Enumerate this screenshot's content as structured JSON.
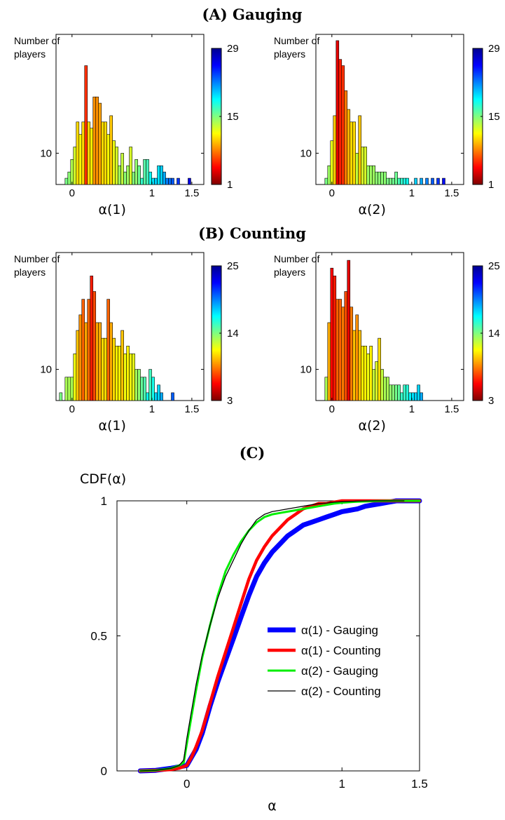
{
  "sections": {
    "a": "(A) Gauging",
    "b": "(B) Counting",
    "c": "(C)"
  },
  "colorbar_stops": [
    "#7f0000",
    "#ff0000",
    "#ff8000",
    "#ffff00",
    "#80ff80",
    "#00ffff",
    "#0080ff",
    "#0000ff",
    "#00008f"
  ],
  "chart_data": [
    {
      "type": "bar",
      "panel": "A-left",
      "section": "Gauging",
      "ylabel": "Number of\nplayers",
      "xlabel": "α(1)",
      "xticks": [
        0,
        1,
        1.5
      ],
      "xtick_labels": [
        "0",
        "1",
        "1.5"
      ],
      "yticks": [
        10
      ],
      "ytick_labels": [
        "10"
      ],
      "xlim": [
        -0.2,
        1.65
      ],
      "ylim": [
        5,
        29
      ],
      "colorbar": {
        "ticks": [
          1,
          15,
          29
        ],
        "labels": [
          "1",
          "15",
          "29"
        ],
        "min": 1,
        "max": 29
      },
      "bins": [
        {
          "x": -0.07,
          "y": 6
        },
        {
          "x": -0.035,
          "y": 7
        },
        {
          "x": 0.0,
          "y": 9
        },
        {
          "x": 0.035,
          "y": 11
        },
        {
          "x": 0.07,
          "y": 15
        },
        {
          "x": 0.105,
          "y": 13
        },
        {
          "x": 0.14,
          "y": 15
        },
        {
          "x": 0.175,
          "y": 24
        },
        {
          "x": 0.21,
          "y": 15
        },
        {
          "x": 0.245,
          "y": 14
        },
        {
          "x": 0.28,
          "y": 19
        },
        {
          "x": 0.315,
          "y": 19
        },
        {
          "x": 0.35,
          "y": 18
        },
        {
          "x": 0.385,
          "y": 15
        },
        {
          "x": 0.42,
          "y": 15
        },
        {
          "x": 0.455,
          "y": 13
        },
        {
          "x": 0.49,
          "y": 16
        },
        {
          "x": 0.525,
          "y": 12
        },
        {
          "x": 0.56,
          "y": 11
        },
        {
          "x": 0.595,
          "y": 8
        },
        {
          "x": 0.63,
          "y": 10
        },
        {
          "x": 0.665,
          "y": 7
        },
        {
          "x": 0.7,
          "y": 8
        },
        {
          "x": 0.735,
          "y": 11
        },
        {
          "x": 0.77,
          "y": 7
        },
        {
          "x": 0.805,
          "y": 9
        },
        {
          "x": 0.84,
          "y": 8
        },
        {
          "x": 0.875,
          "y": 6
        },
        {
          "x": 0.91,
          "y": 9
        },
        {
          "x": 0.945,
          "y": 9
        },
        {
          "x": 0.98,
          "y": 7
        },
        {
          "x": 1.015,
          "y": 6
        },
        {
          "x": 1.05,
          "y": 6
        },
        {
          "x": 1.085,
          "y": 8
        },
        {
          "x": 1.12,
          "y": 8
        },
        {
          "x": 1.155,
          "y": 7
        },
        {
          "x": 1.19,
          "y": 6
        },
        {
          "x": 1.225,
          "y": 6
        },
        {
          "x": 1.26,
          "y": 6
        },
        {
          "x": 1.295,
          "y": 5
        },
        {
          "x": 1.33,
          "y": 6
        },
        {
          "x": 1.47,
          "y": 6
        }
      ]
    },
    {
      "type": "bar",
      "panel": "A-right",
      "section": "Gauging",
      "ylabel": "Number of\nplayers",
      "xlabel": "α(2)",
      "xticks": [
        0,
        1,
        1.5
      ],
      "xtick_labels": [
        "0",
        "1",
        "1.5"
      ],
      "yticks": [
        10
      ],
      "ytick_labels": [
        "10"
      ],
      "xlim": [
        -0.2,
        1.65
      ],
      "ylim": [
        5,
        29
      ],
      "colorbar": {
        "ticks": [
          1,
          15,
          29
        ],
        "labels": [
          "1",
          "15",
          "29"
        ],
        "min": 1,
        "max": 29
      },
      "bins": [
        {
          "x": -0.07,
          "y": 6
        },
        {
          "x": -0.035,
          "y": 8
        },
        {
          "x": 0.0,
          "y": 12
        },
        {
          "x": 0.035,
          "y": 16
        },
        {
          "x": 0.07,
          "y": 28
        },
        {
          "x": 0.105,
          "y": 25
        },
        {
          "x": 0.14,
          "y": 24
        },
        {
          "x": 0.175,
          "y": 20
        },
        {
          "x": 0.21,
          "y": 17
        },
        {
          "x": 0.245,
          "y": 15
        },
        {
          "x": 0.28,
          "y": 15
        },
        {
          "x": 0.315,
          "y": 10
        },
        {
          "x": 0.35,
          "y": 16
        },
        {
          "x": 0.385,
          "y": 11
        },
        {
          "x": 0.42,
          "y": 11
        },
        {
          "x": 0.455,
          "y": 8
        },
        {
          "x": 0.49,
          "y": 8
        },
        {
          "x": 0.525,
          "y": 8
        },
        {
          "x": 0.56,
          "y": 7
        },
        {
          "x": 0.595,
          "y": 7
        },
        {
          "x": 0.63,
          "y": 7
        },
        {
          "x": 0.665,
          "y": 7
        },
        {
          "x": 0.7,
          "y": 6
        },
        {
          "x": 0.735,
          "y": 6
        },
        {
          "x": 0.77,
          "y": 6
        },
        {
          "x": 0.805,
          "y": 7
        },
        {
          "x": 0.84,
          "y": 6
        },
        {
          "x": 0.875,
          "y": 6
        },
        {
          "x": 0.91,
          "y": 6
        },
        {
          "x": 0.945,
          "y": 6
        },
        {
          "x": 1.05,
          "y": 6
        },
        {
          "x": 1.12,
          "y": 6
        },
        {
          "x": 1.19,
          "y": 6
        },
        {
          "x": 1.26,
          "y": 6
        },
        {
          "x": 1.33,
          "y": 6
        },
        {
          "x": 1.4,
          "y": 6
        }
      ]
    },
    {
      "type": "bar",
      "panel": "B-left",
      "section": "Counting",
      "ylabel": "Number of\nplayers",
      "xlabel": "α(1)",
      "xticks": [
        0,
        1,
        1.5
      ],
      "xtick_labels": [
        "0",
        "1",
        "1.5"
      ],
      "yticks": [
        10
      ],
      "ytick_labels": [
        "10"
      ],
      "xlim": [
        -0.2,
        1.65
      ],
      "ylim": [
        6,
        25
      ],
      "colorbar": {
        "ticks": [
          3,
          14,
          25
        ],
        "labels": [
          "3",
          "14",
          "25"
        ],
        "min": 3,
        "max": 25
      },
      "bins": [
        {
          "x": -0.14,
          "y": 7
        },
        {
          "x": -0.07,
          "y": 9
        },
        {
          "x": -0.035,
          "y": 9
        },
        {
          "x": 0.0,
          "y": 9
        },
        {
          "x": 0.035,
          "y": 12
        },
        {
          "x": 0.07,
          "y": 15
        },
        {
          "x": 0.105,
          "y": 17
        },
        {
          "x": 0.14,
          "y": 19
        },
        {
          "x": 0.175,
          "y": 16
        },
        {
          "x": 0.21,
          "y": 19
        },
        {
          "x": 0.245,
          "y": 22
        },
        {
          "x": 0.28,
          "y": 20
        },
        {
          "x": 0.315,
          "y": 16
        },
        {
          "x": 0.35,
          "y": 16
        },
        {
          "x": 0.385,
          "y": 14
        },
        {
          "x": 0.42,
          "y": 14
        },
        {
          "x": 0.455,
          "y": 19
        },
        {
          "x": 0.49,
          "y": 16
        },
        {
          "x": 0.525,
          "y": 14
        },
        {
          "x": 0.56,
          "y": 13
        },
        {
          "x": 0.595,
          "y": 13
        },
        {
          "x": 0.63,
          "y": 15
        },
        {
          "x": 0.665,
          "y": 12
        },
        {
          "x": 0.7,
          "y": 13
        },
        {
          "x": 0.735,
          "y": 12
        },
        {
          "x": 0.77,
          "y": 12
        },
        {
          "x": 0.805,
          "y": 10
        },
        {
          "x": 0.84,
          "y": 10
        },
        {
          "x": 0.875,
          "y": 9
        },
        {
          "x": 0.91,
          "y": 9
        },
        {
          "x": 0.945,
          "y": 7
        },
        {
          "x": 0.98,
          "y": 10
        },
        {
          "x": 1.015,
          "y": 9
        },
        {
          "x": 1.05,
          "y": 7
        },
        {
          "x": 1.085,
          "y": 8
        },
        {
          "x": 1.12,
          "y": 7
        },
        {
          "x": 1.26,
          "y": 7
        }
      ]
    },
    {
      "type": "bar",
      "panel": "B-right",
      "section": "Counting",
      "ylabel": "Number of\nplayers",
      "xlabel": "α(2)",
      "xticks": [
        0,
        1,
        1.5
      ],
      "xtick_labels": [
        "0",
        "1",
        "1.5"
      ],
      "yticks": [
        10
      ],
      "ytick_labels": [
        "10"
      ],
      "xlim": [
        -0.2,
        1.65
      ],
      "ylim": [
        6,
        25
      ],
      "colorbar": {
        "ticks": [
          3,
          14,
          25
        ],
        "labels": [
          "3",
          "14",
          "25"
        ],
        "min": 3,
        "max": 25
      },
      "bins": [
        {
          "x": -0.07,
          "y": 9
        },
        {
          "x": -0.035,
          "y": 16
        },
        {
          "x": 0.0,
          "y": 23
        },
        {
          "x": 0.035,
          "y": 22
        },
        {
          "x": 0.07,
          "y": 19
        },
        {
          "x": 0.105,
          "y": 19
        },
        {
          "x": 0.14,
          "y": 18
        },
        {
          "x": 0.175,
          "y": 20
        },
        {
          "x": 0.21,
          "y": 24
        },
        {
          "x": 0.245,
          "y": 18
        },
        {
          "x": 0.28,
          "y": 15
        },
        {
          "x": 0.315,
          "y": 17
        },
        {
          "x": 0.35,
          "y": 15
        },
        {
          "x": 0.385,
          "y": 13
        },
        {
          "x": 0.42,
          "y": 13
        },
        {
          "x": 0.455,
          "y": 12
        },
        {
          "x": 0.49,
          "y": 13
        },
        {
          "x": 0.525,
          "y": 10
        },
        {
          "x": 0.56,
          "y": 11
        },
        {
          "x": 0.595,
          "y": 14
        },
        {
          "x": 0.63,
          "y": 10
        },
        {
          "x": 0.665,
          "y": 9
        },
        {
          "x": 0.7,
          "y": 9
        },
        {
          "x": 0.735,
          "y": 8
        },
        {
          "x": 0.77,
          "y": 8
        },
        {
          "x": 0.805,
          "y": 8
        },
        {
          "x": 0.84,
          "y": 8
        },
        {
          "x": 0.875,
          "y": 7
        },
        {
          "x": 0.91,
          "y": 8
        },
        {
          "x": 0.945,
          "y": 8
        },
        {
          "x": 0.98,
          "y": 7
        },
        {
          "x": 1.015,
          "y": 7
        },
        {
          "x": 1.05,
          "y": 7
        },
        {
          "x": 1.085,
          "y": 8
        },
        {
          "x": 1.12,
          "y": 7
        }
      ]
    },
    {
      "type": "line",
      "panel": "C",
      "section": "",
      "ylabel": "CDF(α)",
      "xlabel": "α",
      "xlim": [
        -0.45,
        1.5
      ],
      "ylim": [
        0,
        1
      ],
      "xticks": [
        0,
        1,
        1.5
      ],
      "xtick_labels": [
        "0",
        "1",
        "1.5"
      ],
      "yticks": [
        0,
        0.5,
        1
      ],
      "ytick_labels": [
        "0",
        "0.5",
        "1"
      ],
      "legend_position": "center-right",
      "series": [
        {
          "name": "α(1) - Gauging",
          "color": "#0000ff",
          "width": 7,
          "x": [
            -0.3,
            -0.2,
            -0.1,
            -0.05,
            0,
            0.03,
            0.06,
            0.1,
            0.15,
            0.2,
            0.25,
            0.3,
            0.35,
            0.4,
            0.45,
            0.5,
            0.55,
            0.6,
            0.65,
            0.7,
            0.75,
            0.8,
            0.85,
            0.9,
            0.95,
            1.0,
            1.05,
            1.1,
            1.15,
            1.2,
            1.25,
            1.3,
            1.35,
            1.4,
            1.45,
            1.5
          ],
          "y": [
            0,
            0.002,
            0.01,
            0.015,
            0.02,
            0.05,
            0.08,
            0.14,
            0.24,
            0.33,
            0.41,
            0.49,
            0.57,
            0.65,
            0.72,
            0.77,
            0.81,
            0.84,
            0.87,
            0.89,
            0.91,
            0.92,
            0.93,
            0.94,
            0.95,
            0.96,
            0.965,
            0.97,
            0.98,
            0.985,
            0.99,
            0.995,
            1.0,
            1.0,
            1.0,
            1.0
          ]
        },
        {
          "name": "α(1) - Counting",
          "color": "#ff0000",
          "width": 4.5,
          "x": [
            -0.3,
            -0.2,
            -0.1,
            -0.05,
            0,
            0.03,
            0.06,
            0.1,
            0.15,
            0.2,
            0.25,
            0.3,
            0.35,
            0.4,
            0.45,
            0.5,
            0.55,
            0.6,
            0.65,
            0.7,
            0.75,
            0.8,
            0.85,
            0.9,
            0.95,
            1.0,
            1.05,
            1.1,
            1.15,
            1.2,
            1.3,
            1.4,
            1.5
          ],
          "y": [
            0,
            0.002,
            0.005,
            0.01,
            0.02,
            0.05,
            0.09,
            0.15,
            0.25,
            0.35,
            0.44,
            0.53,
            0.62,
            0.71,
            0.78,
            0.83,
            0.87,
            0.9,
            0.93,
            0.95,
            0.97,
            0.98,
            0.99,
            0.99,
            0.995,
            1.0,
            1.0,
            1.0,
            1.0,
            1.0,
            1.0,
            1.0,
            1.0
          ]
        },
        {
          "name": "α(2) - Gauging",
          "color": "#00ee00",
          "width": 3,
          "x": [
            -0.3,
            -0.2,
            -0.1,
            -0.05,
            -0.02,
            0,
            0.03,
            0.06,
            0.1,
            0.15,
            0.2,
            0.25,
            0.3,
            0.35,
            0.4,
            0.45,
            0.5,
            0.55,
            0.6,
            0.65,
            0.7,
            0.75,
            0.8,
            0.85,
            0.9,
            0.95,
            1.0,
            1.05,
            1.1,
            1.2,
            1.3,
            1.4,
            1.5
          ],
          "y": [
            0,
            0.002,
            0.01,
            0.02,
            0.03,
            0.1,
            0.2,
            0.3,
            0.42,
            0.54,
            0.65,
            0.74,
            0.8,
            0.85,
            0.89,
            0.92,
            0.94,
            0.95,
            0.955,
            0.96,
            0.965,
            0.97,
            0.975,
            0.98,
            0.985,
            0.99,
            0.993,
            0.995,
            0.997,
            0.999,
            1.0,
            1.0,
            1.0
          ]
        },
        {
          "name": "α(2) - Counting",
          "color": "#000000",
          "width": 1.3,
          "x": [
            -0.3,
            -0.2,
            -0.1,
            -0.05,
            -0.02,
            0,
            0.03,
            0.06,
            0.1,
            0.15,
            0.2,
            0.25,
            0.3,
            0.35,
            0.4,
            0.45,
            0.5,
            0.55,
            0.6,
            0.65,
            0.7,
            0.75,
            0.8,
            0.85,
            0.9,
            0.95,
            1.0,
            1.05,
            1.1,
            1.2,
            1.3,
            1.4
          ],
          "y": [
            0,
            0.002,
            0.01,
            0.02,
            0.04,
            0.12,
            0.22,
            0.32,
            0.43,
            0.54,
            0.64,
            0.72,
            0.78,
            0.84,
            0.89,
            0.93,
            0.95,
            0.96,
            0.965,
            0.97,
            0.975,
            0.98,
            0.985,
            0.99,
            0.992,
            0.995,
            0.997,
            0.998,
            0.999,
            1.0,
            1.0,
            1.0
          ]
        }
      ]
    }
  ]
}
